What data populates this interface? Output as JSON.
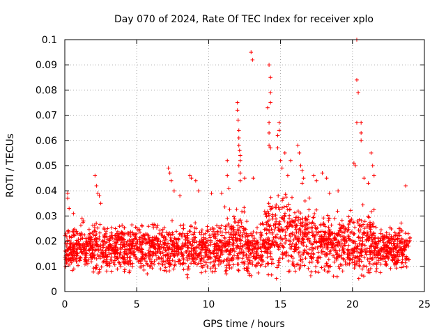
{
  "chart_data": {
    "type": "scatter",
    "title": "Day 070 of 2024, Rate Of TEC Index for receiver xplo",
    "xlabel": "GPS time / hours",
    "ylabel": "ROTI / TECUs",
    "xlim": [
      0,
      25
    ],
    "ylim": [
      0,
      0.1
    ],
    "x_ticks": [
      0,
      5,
      10,
      15,
      20,
      25
    ],
    "x_tick_labels": [
      "0",
      "5",
      "10",
      "15",
      "20",
      "25"
    ],
    "y_ticks": [
      0,
      0.01,
      0.02,
      0.03,
      0.04,
      0.05,
      0.06,
      0.07,
      0.08,
      0.09,
      0.1
    ],
    "y_tick_labels": [
      "0",
      "0.01",
      "0.02",
      "0.03",
      "0.04",
      "0.05",
      "0.06",
      "0.07",
      "0.08",
      "0.09",
      "0.1"
    ],
    "grid": true,
    "marker": "+",
    "color": "#ff0000",
    "x_data_range": [
      0,
      24
    ],
    "baseline": {
      "typical_min": 0.005,
      "typical_max": 0.03,
      "median": 0.017
    },
    "series": [
      {
        "name": "ROTI",
        "outliers": [
          {
            "x": 0.2,
            "y": 0.039
          },
          {
            "x": 0.2,
            "y": 0.037
          },
          {
            "x": 0.3,
            "y": 0.033
          },
          {
            "x": 0.6,
            "y": 0.031
          },
          {
            "x": 1.2,
            "y": 0.029
          },
          {
            "x": 1.3,
            "y": 0.028
          },
          {
            "x": 2.1,
            "y": 0.046
          },
          {
            "x": 2.2,
            "y": 0.042
          },
          {
            "x": 2.3,
            "y": 0.039
          },
          {
            "x": 2.4,
            "y": 0.038
          },
          {
            "x": 2.5,
            "y": 0.035
          },
          {
            "x": 7.2,
            "y": 0.049
          },
          {
            "x": 7.3,
            "y": 0.047
          },
          {
            "x": 7.4,
            "y": 0.044
          },
          {
            "x": 7.6,
            "y": 0.04
          },
          {
            "x": 8.0,
            "y": 0.038
          },
          {
            "x": 8.7,
            "y": 0.046
          },
          {
            "x": 8.8,
            "y": 0.045
          },
          {
            "x": 9.1,
            "y": 0.044
          },
          {
            "x": 9.3,
            "y": 0.04
          },
          {
            "x": 10.2,
            "y": 0.039
          },
          {
            "x": 10.9,
            "y": 0.039
          },
          {
            "x": 11.3,
            "y": 0.052
          },
          {
            "x": 11.3,
            "y": 0.046
          },
          {
            "x": 11.4,
            "y": 0.041
          },
          {
            "x": 12.0,
            "y": 0.075
          },
          {
            "x": 12.0,
            "y": 0.072
          },
          {
            "x": 12.05,
            "y": 0.068
          },
          {
            "x": 12.1,
            "y": 0.064
          },
          {
            "x": 12.1,
            "y": 0.061
          },
          {
            "x": 12.1,
            "y": 0.058
          },
          {
            "x": 12.15,
            "y": 0.056
          },
          {
            "x": 12.2,
            "y": 0.054
          },
          {
            "x": 12.2,
            "y": 0.052
          },
          {
            "x": 12.1,
            "y": 0.05
          },
          {
            "x": 12.2,
            "y": 0.047
          },
          {
            "x": 12.5,
            "y": 0.045
          },
          {
            "x": 12.2,
            "y": 0.044
          },
          {
            "x": 12.95,
            "y": 0.095
          },
          {
            "x": 13.05,
            "y": 0.092
          },
          {
            "x": 13.1,
            "y": 0.045
          },
          {
            "x": 14.2,
            "y": 0.09
          },
          {
            "x": 14.3,
            "y": 0.085
          },
          {
            "x": 14.3,
            "y": 0.079
          },
          {
            "x": 14.3,
            "y": 0.075
          },
          {
            "x": 14.1,
            "y": 0.073
          },
          {
            "x": 14.2,
            "y": 0.067
          },
          {
            "x": 14.2,
            "y": 0.063
          },
          {
            "x": 14.2,
            "y": 0.058
          },
          {
            "x": 14.3,
            "y": 0.057
          },
          {
            "x": 14.9,
            "y": 0.067
          },
          {
            "x": 14.9,
            "y": 0.064
          },
          {
            "x": 14.8,
            "y": 0.062
          },
          {
            "x": 14.8,
            "y": 0.057
          },
          {
            "x": 15.0,
            "y": 0.052
          },
          {
            "x": 15.1,
            "y": 0.049
          },
          {
            "x": 15.3,
            "y": 0.055
          },
          {
            "x": 15.5,
            "y": 0.046
          },
          {
            "x": 15.7,
            "y": 0.052
          },
          {
            "x": 16.2,
            "y": 0.058
          },
          {
            "x": 16.3,
            "y": 0.055
          },
          {
            "x": 16.4,
            "y": 0.05
          },
          {
            "x": 16.5,
            "y": 0.048
          },
          {
            "x": 16.6,
            "y": 0.045
          },
          {
            "x": 16.5,
            "y": 0.043
          },
          {
            "x": 17.3,
            "y": 0.046
          },
          {
            "x": 17.5,
            "y": 0.044
          },
          {
            "x": 17.9,
            "y": 0.047
          },
          {
            "x": 18.2,
            "y": 0.045
          },
          {
            "x": 18.4,
            "y": 0.039
          },
          {
            "x": 19.0,
            "y": 0.04
          },
          {
            "x": 20.3,
            "y": 0.1
          },
          {
            "x": 20.3,
            "y": 0.084
          },
          {
            "x": 20.4,
            "y": 0.079
          },
          {
            "x": 20.3,
            "y": 0.067
          },
          {
            "x": 20.6,
            "y": 0.067
          },
          {
            "x": 20.6,
            "y": 0.063
          },
          {
            "x": 20.6,
            "y": 0.06
          },
          {
            "x": 20.1,
            "y": 0.051
          },
          {
            "x": 20.2,
            "y": 0.05
          },
          {
            "x": 20.8,
            "y": 0.045
          },
          {
            "x": 21.1,
            "y": 0.043
          },
          {
            "x": 21.3,
            "y": 0.055
          },
          {
            "x": 21.4,
            "y": 0.05
          },
          {
            "x": 21.5,
            "y": 0.046
          },
          {
            "x": 23.7,
            "y": 0.042
          }
        ]
      }
    ]
  }
}
